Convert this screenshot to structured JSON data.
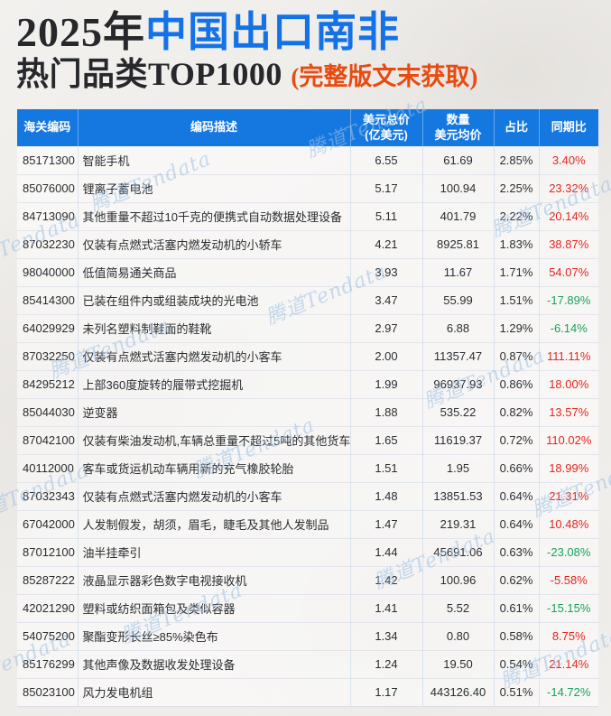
{
  "title": {
    "line1_black": "2025年",
    "line1_blue": "中国出口南非",
    "line2_black": "热门品类TOP1000",
    "line2_orange": "(完整版文末获取)"
  },
  "watermark": {
    "text": "腾道Tendata"
  },
  "colors": {
    "header_blue": "#1578e0",
    "title_blue": "#1472e8",
    "title_orange": "#e84b10",
    "positive_red": "#e8251f",
    "negative_green": "#17a45a"
  },
  "table": {
    "headers": [
      {
        "line1": "海关编码",
        "line2": ""
      },
      {
        "line1": "编码描述",
        "line2": ""
      },
      {
        "line1": "美元总价",
        "line2": "(亿美元)"
      },
      {
        "line1": "数量",
        "line2": "美元均价"
      },
      {
        "line1": "占比",
        "line2": ""
      },
      {
        "line1": "同期比",
        "line2": ""
      }
    ],
    "rows": [
      {
        "code": "85171300",
        "desc": "智能手机",
        "total": "6.55",
        "qty_avg": "61.69",
        "share": "2.85%",
        "yoy": "3.40%",
        "yoy_color": "red"
      },
      {
        "code": "85076000",
        "desc": "锂离子蓄电池",
        "total": "5.17",
        "qty_avg": "100.94",
        "share": "2.25%",
        "yoy": "23.32%",
        "yoy_color": "red"
      },
      {
        "code": "84713090",
        "desc": "其他重量不超过10千克的便携式自动数据处理设备",
        "total": "5.11",
        "qty_avg": "401.79",
        "share": "2.22%",
        "yoy": "20.14%",
        "yoy_color": "red"
      },
      {
        "code": "87032230",
        "desc": "仅装有点燃式活塞内燃发动机的小轿车",
        "total": "4.21",
        "qty_avg": "8925.81",
        "share": "1.83%",
        "yoy": "38.87%",
        "yoy_color": "red"
      },
      {
        "code": "98040000",
        "desc": "低值简易通关商品",
        "total": "3.93",
        "qty_avg": "11.67",
        "share": "1.71%",
        "yoy": "54.07%",
        "yoy_color": "red"
      },
      {
        "code": "85414300",
        "desc": "已装在组件内或组装成块的光电池",
        "total": "3.47",
        "qty_avg": "55.99",
        "share": "1.51%",
        "yoy": "-17.89%",
        "yoy_color": "green"
      },
      {
        "code": "64029929",
        "desc": "未列名塑料制鞋面的鞋靴",
        "total": "2.97",
        "qty_avg": "6.88",
        "share": "1.29%",
        "yoy": "-6.14%",
        "yoy_color": "green"
      },
      {
        "code": "87032250",
        "desc": "仅装有点燃式活塞内燃发动机的小客车",
        "total": "2.00",
        "qty_avg": "11357.47",
        "share": "0.87%",
        "yoy": "111.11%",
        "yoy_color": "red"
      },
      {
        "code": "84295212",
        "desc": "上部360度旋转的履带式挖掘机",
        "total": "1.99",
        "qty_avg": "96937.93",
        "share": "0.86%",
        "yoy": "18.00%",
        "yoy_color": "red"
      },
      {
        "code": "85044030",
        "desc": "逆变器",
        "total": "1.88",
        "qty_avg": "535.22",
        "share": "0.82%",
        "yoy": "13.57%",
        "yoy_color": "red"
      },
      {
        "code": "87042100",
        "desc": "仅装有柴油发动机,车辆总重量不超过5吨的其他货车",
        "total": "1.65",
        "qty_avg": "11619.37",
        "share": "0.72%",
        "yoy": "110.02%",
        "yoy_color": "red"
      },
      {
        "code": "40112000",
        "desc": "客车或货运机动车辆用新的充气橡胶轮胎",
        "total": "1.51",
        "qty_avg": "1.95",
        "share": "0.66%",
        "yoy": "18.99%",
        "yoy_color": "red"
      },
      {
        "code": "87032343",
        "desc": "仅装有点燃式活塞内燃发动机的小客车",
        "total": "1.48",
        "qty_avg": "13851.53",
        "share": "0.64%",
        "yoy": "21.31%",
        "yoy_color": "red"
      },
      {
        "code": "67042000",
        "desc": "人发制假发，胡须，眉毛，睫毛及其他人发制品",
        "total": "1.47",
        "qty_avg": "219.31",
        "share": "0.64%",
        "yoy": "10.48%",
        "yoy_color": "red"
      },
      {
        "code": "87012100",
        "desc": "油半挂牵引",
        "total": "1.44",
        "qty_avg": "45691.06",
        "share": "0.63%",
        "yoy": "-23.08%",
        "yoy_color": "green"
      },
      {
        "code": "85287222",
        "desc": "液晶显示器彩色数字电视接收机",
        "total": "1.42",
        "qty_avg": "100.96",
        "share": "0.62%",
        "yoy": "-5.58%",
        "yoy_color": "red"
      },
      {
        "code": "42021290",
        "desc": "塑料或纺织面箱包及类似容器",
        "total": "1.41",
        "qty_avg": "5.52",
        "share": "0.61%",
        "yoy": "-15.15%",
        "yoy_color": "green"
      },
      {
        "code": "54075200",
        "desc": "聚酯变形长丝≥85%染色布",
        "total": "1.34",
        "qty_avg": "0.80",
        "share": "0.58%",
        "yoy": "8.75%",
        "yoy_color": "red"
      },
      {
        "code": "85176299",
        "desc": "其他声像及数据收发处理设备",
        "total": "1.24",
        "qty_avg": "19.50",
        "share": "0.54%",
        "yoy": "21.14%",
        "yoy_color": "red"
      },
      {
        "code": "85023100",
        "desc": "风力发电机组",
        "total": "1.17",
        "qty_avg": "443126.40",
        "share": "0.51%",
        "yoy": "-14.72%",
        "yoy_color": "green"
      }
    ]
  }
}
